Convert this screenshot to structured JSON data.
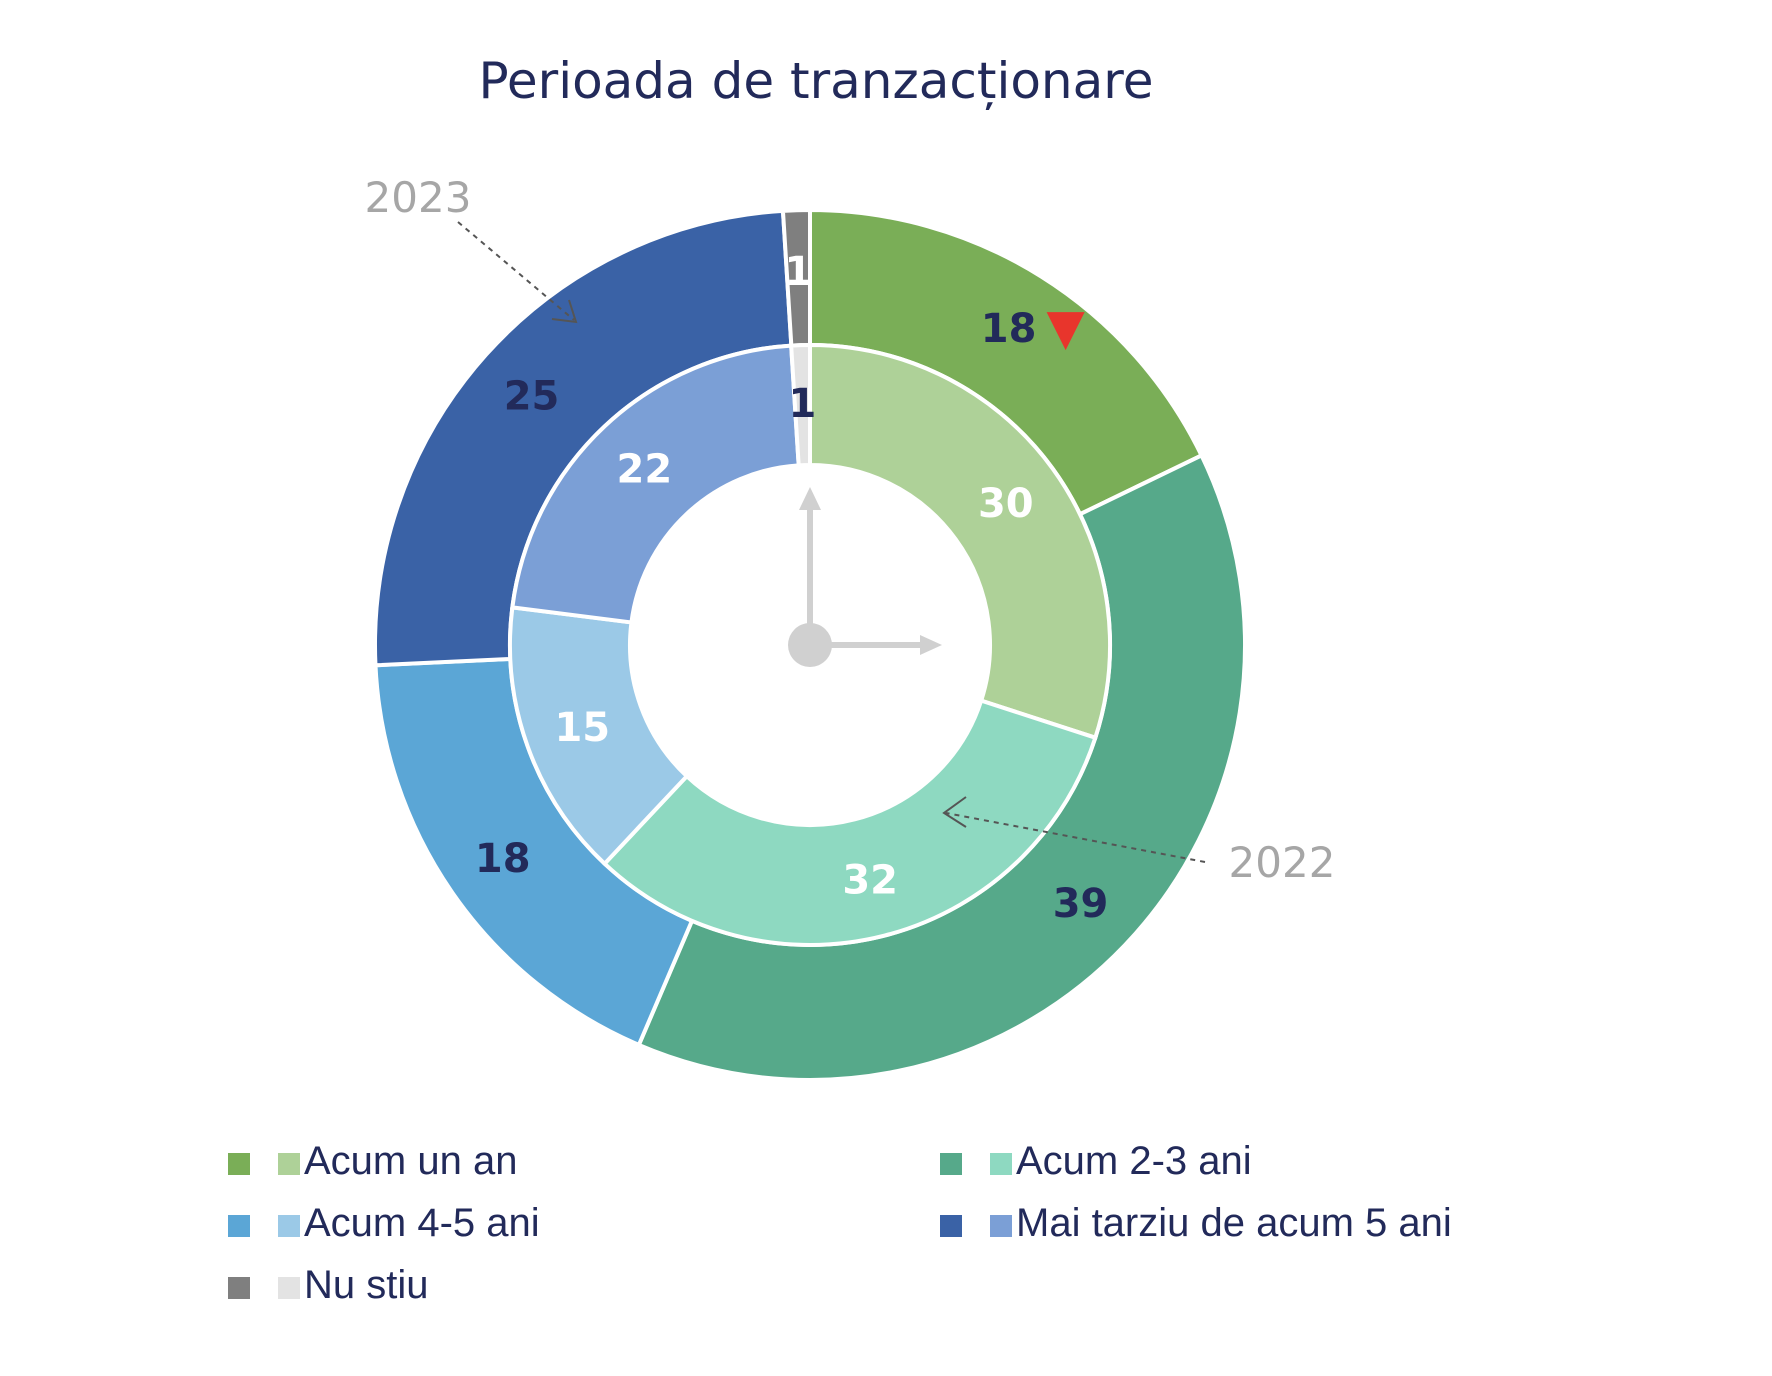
{
  "chart_data": {
    "type": "pie",
    "subtype": "nested-donut",
    "title": "Perioada de tranzacționare",
    "categories": [
      "Acum un an",
      "Acum 2-3 ani",
      "Acum 4-5 ani",
      "Mai tarziu de acum 5 ani",
      "Nu stiu"
    ],
    "series": [
      {
        "name": "2023",
        "ring": "outer",
        "values": [
          18,
          39,
          18,
          25,
          1
        ],
        "colors": [
          "#7aae57",
          "#56a98a",
          "#5ba6d6",
          "#3a62a6",
          "#7f7f7f"
        ],
        "label_colors": [
          "#222a5a",
          "#222a5a",
          "#222a5a",
          "#222a5a",
          "#ffffff"
        ]
      },
      {
        "name": "2022",
        "ring": "inner",
        "values": [
          30,
          32,
          15,
          22,
          1
        ],
        "colors": [
          "#aed198",
          "#8ed9c1",
          "#9bc9e7",
          "#7b9fd6",
          "#e3e3e3"
        ],
        "label_colors": [
          "#ffffff",
          "#ffffff",
          "#ffffff",
          "#ffffff",
          "#222a5a"
        ]
      }
    ],
    "annotations": [
      {
        "series": "2023",
        "category": "Acum un an",
        "marker": "down-triangle",
        "color": "#e8352c"
      }
    ],
    "legend": {
      "position": "bottom",
      "columns": 2,
      "items": [
        {
          "label": "Acum un an",
          "colors": [
            "#7aae57",
            "#aed198"
          ]
        },
        {
          "label": "Acum 2-3 ani",
          "colors": [
            "#56a98a",
            "#8ed9c1"
          ]
        },
        {
          "label": "Acum 4-5 ani",
          "colors": [
            "#5ba6d6",
            "#9bc9e7"
          ]
        },
        {
          "label": "Mai tarziu de acum 5 ani",
          "colors": [
            "#3a62a6",
            "#7b9fd6"
          ]
        },
        {
          "label": "Nu stiu",
          "colors": [
            "#7f7f7f",
            "#e3e3e3"
          ]
        }
      ]
    },
    "center_icon": "clock-icon"
  },
  "colors": {
    "title": "#222a5a",
    "year_label": "#a6a6a6",
    "clock": "#d0d0d0",
    "decline_marker": "#e8352c"
  }
}
